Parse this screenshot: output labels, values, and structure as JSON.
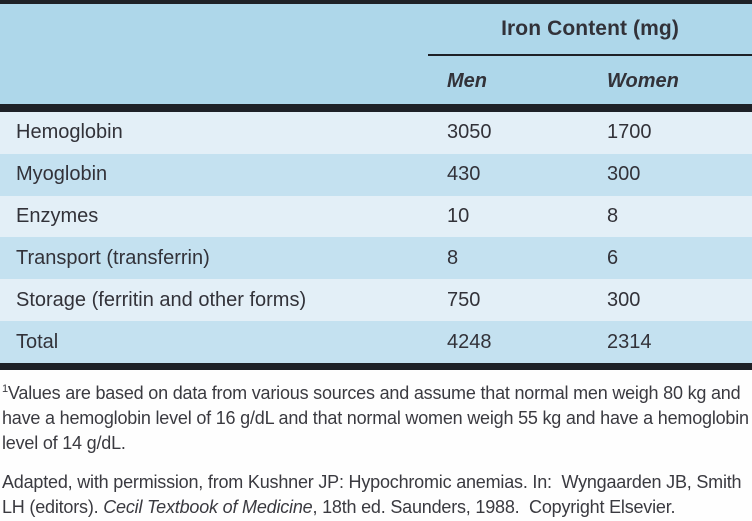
{
  "colors": {
    "page_bg": "#fefefe",
    "header_bg": "#aed7ea",
    "row_light": "#e3eff7",
    "row_dark": "#c4e1f0",
    "rule": "#1e2127",
    "table_text": "#323239",
    "notes_text": "#3a3a40"
  },
  "table": {
    "column_group_title": "Iron Content (mg)",
    "columns": [
      "Men",
      "Women"
    ],
    "rows": [
      {
        "label": "Hemoglobin",
        "men": "3050",
        "women": "1700"
      },
      {
        "label": "Myoglobin",
        "men": "430",
        "women": "300"
      },
      {
        "label": "Enzymes",
        "men": "10",
        "women": "8"
      },
      {
        "label": "Transport (transferrin)",
        "men": "8",
        "women": "6"
      },
      {
        "label": "Storage (ferritin and other forms)",
        "men": "750",
        "women": "300"
      },
      {
        "label": "Total",
        "men": "4248",
        "women": "2314"
      }
    ]
  },
  "footnote": {
    "marker": "1",
    "text": "Values are based on data from various sources and assume that normal men weigh 80 kg and have a hemoglobin level of 16 g/dL and that normal women weigh 55 kg and have a hemoglobin level of 14 g/dL."
  },
  "attribution": {
    "before_italic": "Adapted, with permission, from Kushner JP: Hypochromic anemias. In:  Wyngaarden JB, Smith LH (editors). ",
    "italic": "Cecil Textbook of Medicine",
    "after_italic": ", 18th ed. Saunders, 1988.  Copyright Elsevier."
  },
  "chart_data": {
    "type": "table",
    "title": "Iron Content (mg)",
    "categories": [
      "Hemoglobin",
      "Myoglobin",
      "Enzymes",
      "Transport (transferrin)",
      "Storage (ferritin and other forms)",
      "Total"
    ],
    "series": [
      {
        "name": "Men",
        "values": [
          3050,
          430,
          10,
          8,
          750,
          4248
        ]
      },
      {
        "name": "Women",
        "values": [
          1700,
          300,
          8,
          6,
          300,
          2314
        ]
      }
    ]
  }
}
